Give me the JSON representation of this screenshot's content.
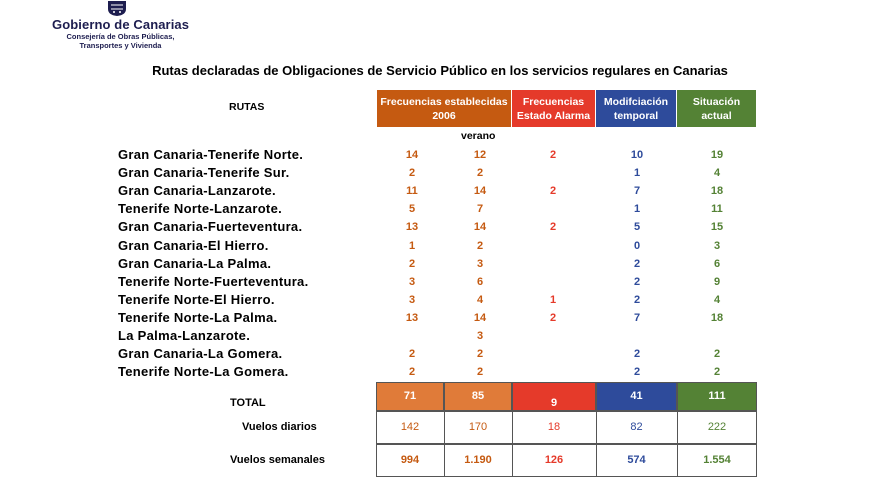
{
  "header": {
    "org": "Gobierno de Canarias",
    "dept_line1": "Consejería de Obras Públicas,",
    "dept_line2": "Transportes y Vivienda"
  },
  "title": "Rutas declaradas de Obligaciones de Servicio Público en los servicios regulares en Canarias",
  "table": {
    "rutas_header": "RUTAS",
    "col_frecuencias": "Frecuencias establecidas 2006",
    "col_alarma": "Frecuencias Estado Alarma",
    "col_modificacion": "Modifciación temporal",
    "col_situacion": "Situación actual",
    "sub_verano": "verano",
    "rows": [
      {
        "route": "Gran Canaria-Tenerife Norte.",
        "f2006": "14",
        "verano": "12",
        "alarma": "2",
        "mod": "10",
        "sit": "19"
      },
      {
        "route": "Gran Canaria-Tenerife Sur.",
        "f2006": "2",
        "verano": "2",
        "alarma": "",
        "mod": "1",
        "sit": "4"
      },
      {
        "route": "Gran Canaria-Lanzarote.",
        "f2006": "11",
        "verano": "14",
        "alarma": "2",
        "mod": "7",
        "sit": "18"
      },
      {
        "route": "Tenerife Norte-Lanzarote.",
        "f2006": "5",
        "verano": "7",
        "alarma": "",
        "mod": "1",
        "sit": "11"
      },
      {
        "route": "Gran Canaria-Fuerteventura.",
        "f2006": "13",
        "verano": "14",
        "alarma": "2",
        "mod": "5",
        "sit": "15"
      },
      {
        "route": "Gran Canaria-El Hierro.",
        "f2006": "1",
        "verano": "2",
        "alarma": "",
        "mod": "0",
        "sit": "3"
      },
      {
        "route": "Gran Canaria-La Palma.",
        "f2006": "2",
        "verano": "3",
        "alarma": "",
        "mod": "2",
        "sit": "6"
      },
      {
        "route": "Tenerife Norte-Fuerteventura.",
        "f2006": "3",
        "verano": "6",
        "alarma": "",
        "mod": "2",
        "sit": "9"
      },
      {
        "route": "Tenerife Norte-El Hierro.",
        "f2006": "3",
        "verano": "4",
        "alarma": "1",
        "mod": "2",
        "sit": "4"
      },
      {
        "route": "Tenerife Norte-La Palma.",
        "f2006": "13",
        "verano": "14",
        "alarma": "2",
        "mod": "7",
        "sit": "18"
      },
      {
        "route": "La Palma-Lanzarote.",
        "f2006": "",
        "verano": "3",
        "alarma": "",
        "mod": "",
        "sit": ""
      },
      {
        "route": "Gran Canaria-La Gomera.",
        "f2006": "2",
        "verano": "2",
        "alarma": "",
        "mod": "2",
        "sit": "2"
      },
      {
        "route": "Tenerife Norte-La Gomera.",
        "f2006": "2",
        "verano": "2",
        "alarma": "",
        "mod": "2",
        "sit": "2"
      }
    ],
    "total": {
      "label": "TOTAL",
      "f2006": "71",
      "verano": "85",
      "alarma": "9",
      "mod": "41",
      "sit": "111"
    },
    "diarios": {
      "label": "Vuelos diarios",
      "f2006": "142",
      "verano": "170",
      "alarma": "18",
      "mod": "82",
      "sit": "222"
    },
    "semanales": {
      "label": "Vuelos  semanales",
      "f2006": "994",
      "verano": "1.190",
      "alarma": "126",
      "mod": "574",
      "sit": "1.554"
    }
  },
  "colors": {
    "orange": "#c55a11",
    "orange_light": "#e07b39",
    "red": "#e53a2a",
    "blue": "#2e4b9b",
    "green": "#548235"
  }
}
